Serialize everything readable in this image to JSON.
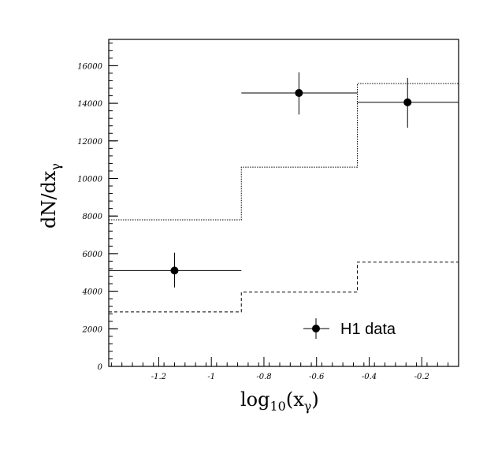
{
  "chart_data": {
    "type": "line",
    "title": "",
    "xlabel": "log10(xγ)",
    "xlabel_parts": {
      "base": "log",
      "sub": "10",
      "open": "(x",
      "gamma": "γ",
      "close": ")"
    },
    "ylabel": "dN/dxγ",
    "ylabel_parts": {
      "main": "dN/dx",
      "sub": "γ"
    },
    "xlim": [
      -1.39,
      -0.06
    ],
    "ylim": [
      0,
      17400
    ],
    "xticks": [
      -1.2,
      -1.0,
      -0.8,
      -0.6,
      -0.4,
      -0.2
    ],
    "xtick_labels": [
      "-1.2",
      "-1",
      "-0.8",
      "-0.6",
      "-0.4",
      "-0.2"
    ],
    "yticks": [
      0,
      2000,
      4000,
      6000,
      8000,
      10000,
      12000,
      14000,
      16000
    ],
    "ytick_labels": [
      "0",
      "2000",
      "4000",
      "6000",
      "8000",
      "10000",
      "12000",
      "14000",
      "16000"
    ],
    "bin_edges": [
      -1.39,
      -0.886,
      -0.445,
      -0.06
    ],
    "series": [
      {
        "name": "H1 data",
        "style": "points",
        "x": [
          -1.14,
          -0.667,
          -0.254
        ],
        "values": [
          5100,
          14550,
          14050
        ],
        "err_low": [
          900,
          1150,
          1350
        ],
        "err_high": [
          950,
          1100,
          1300
        ]
      },
      {
        "name": "dotted histogram",
        "style": "dotted",
        "values": [
          7800,
          10600,
          15050
        ]
      },
      {
        "name": "dashed histogram",
        "style": "dashed",
        "values": [
          2900,
          3950,
          5550
        ]
      }
    ],
    "legend": {
      "label": "H1 data",
      "placement": "bottom-right"
    }
  }
}
